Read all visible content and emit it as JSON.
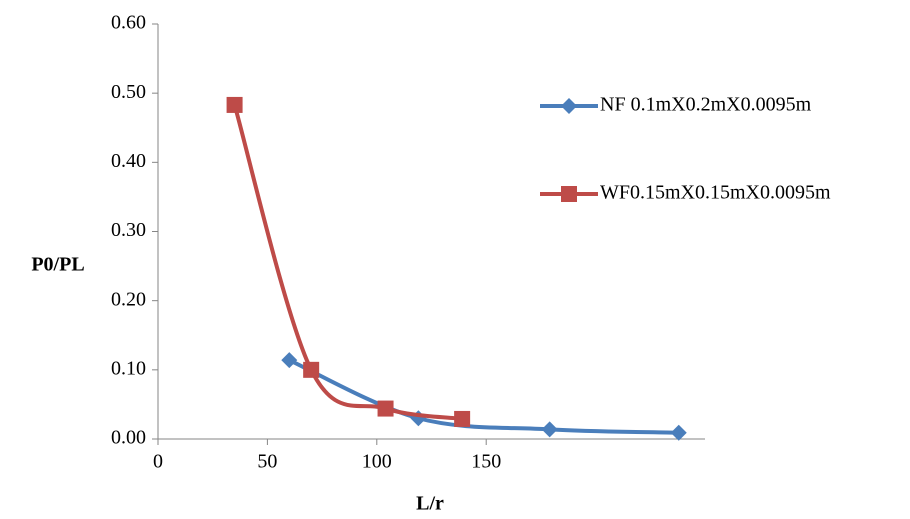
{
  "chart_data": {
    "type": "line",
    "x_label": "L/r",
    "y_label": "P0/PL",
    "xlim": [
      0,
      250
    ],
    "xticks": [
      0,
      50,
      100,
      150
    ],
    "ylim": [
      0,
      0.6
    ],
    "yticks": [
      {
        "value": 0,
        "label": "0.00"
      },
      {
        "value": 0.1,
        "label": "0.10"
      },
      {
        "value": 0.2,
        "label": "0.20"
      },
      {
        "value": 0.3,
        "label": "0.30"
      },
      {
        "value": 0.4,
        "label": "0.40"
      },
      {
        "value": 0.5,
        "label": "0.50"
      },
      {
        "value": 0.6,
        "label": "0.60"
      }
    ],
    "series": [
      {
        "name": "NF 0.1mX0.2mX0.0095m",
        "color": "#4a7ebb",
        "marker": "diamond",
        "x": [
          60,
          119,
          179,
          238
        ],
        "values": [
          0.114,
          0.03,
          0.014,
          0.009
        ]
      },
      {
        "name": "WF0.15mX0.15mX0.0095m",
        "color": "#be4b48",
        "marker": "square",
        "x": [
          35,
          70,
          104,
          139
        ],
        "values": [
          0.483,
          0.1,
          0.044,
          0.029
        ]
      }
    ]
  }
}
